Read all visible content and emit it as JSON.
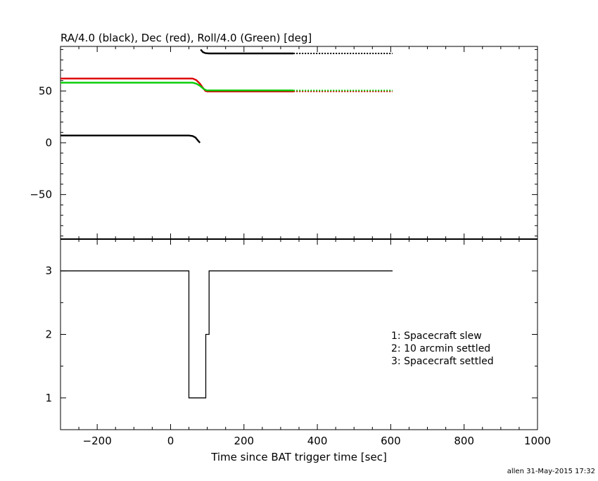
{
  "chart_data": [
    {
      "type": "line",
      "title": "RA/4.0 (black), Dec (red), Roll/4.0 (Green) [deg]",
      "xlabel": "",
      "ylabel": "",
      "xlim": [
        -300,
        1000
      ],
      "ylim": [
        -93,
        93
      ],
      "yticks": [
        -50,
        0,
        50
      ],
      "grid": false,
      "series": [
        {
          "name": "RA/4.0",
          "color": "#000000",
          "segments": [
            [
              [
                -300,
                7
              ],
              [
                50,
                7
              ],
              [
                60,
                6.5
              ],
              [
                68,
                5
              ],
              [
                75,
                2
              ],
              [
                80,
                0
              ]
            ],
            [
              [
                82,
                90
              ],
              [
                88,
                87.5
              ],
              [
                95,
                86.5
              ],
              [
                105,
                86.2
              ],
              [
                335,
                86.2
              ]
            ],
            [
              [
                335,
                86.2
              ],
              [
                605,
                86.2
              ]
            ]
          ]
        },
        {
          "name": "Dec",
          "color": "#dd0000",
          "segments": [
            [
              [
                -300,
                62
              ],
              [
                60,
                62
              ],
              [
                70,
                60.5
              ],
              [
                80,
                57
              ],
              [
                88,
                53
              ],
              [
                95,
                50
              ],
              [
                100,
                49.5
              ],
              [
                335,
                49.5
              ]
            ],
            [
              [
                335,
                49.5
              ],
              [
                605,
                49.5
              ]
            ]
          ]
        },
        {
          "name": "Roll/4.0",
          "color": "#00cc00",
          "segments": [
            [
              [
                -300,
                58
              ],
              [
                60,
                58
              ],
              [
                70,
                57
              ],
              [
                80,
                55
              ],
              [
                90,
                52
              ],
              [
                98,
                50.5
              ],
              [
                105,
                50.5
              ],
              [
                335,
                50.5
              ]
            ],
            [
              [
                335,
                50.5
              ],
              [
                605,
                50.5
              ]
            ]
          ]
        }
      ]
    },
    {
      "type": "line",
      "title": "",
      "xlabel": "Time since BAT trigger time [sec]",
      "ylabel": "",
      "xlim": [
        -300,
        1000
      ],
      "ylim": [
        0.5,
        3.5
      ],
      "xticks": [
        -200,
        0,
        200,
        400,
        600,
        800,
        1000
      ],
      "yticks": [
        1,
        2,
        3
      ],
      "grid": false,
      "legend": [
        "1: Spacecraft slew",
        "2: 10 arcmin settled",
        "3: Spacecraft settled"
      ],
      "legend_position": "right-middle",
      "series": [
        {
          "color": "#000000",
          "x": [
            -300,
            50,
            50,
            96,
            96,
            105,
            105,
            605
          ],
          "y": [
            3,
            3,
            1,
            1,
            2,
            2,
            3,
            3
          ]
        }
      ]
    }
  ],
  "footer": "allen 31-May-2015 17:32"
}
